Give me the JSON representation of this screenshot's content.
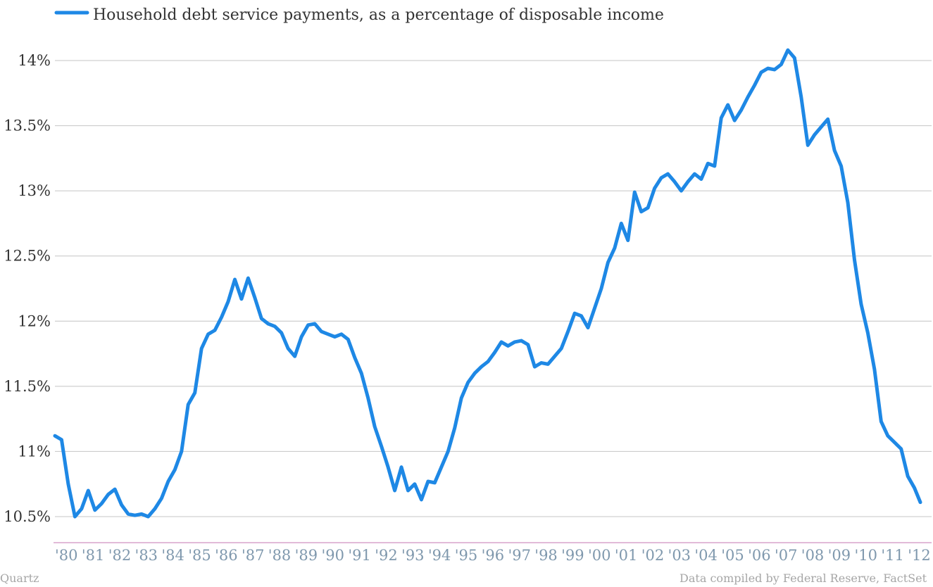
{
  "chart_data": {
    "type": "line",
    "title": "",
    "xlabel": "",
    "ylabel": "",
    "legend_position": "top-left",
    "grid": true,
    "ylim": [
      10.5,
      14.0
    ],
    "y_ticks": [
      {
        "value": 14.0,
        "label": "14%"
      },
      {
        "value": 13.5,
        "label": "13.5%"
      },
      {
        "value": 13.0,
        "label": "13%"
      },
      {
        "value": 12.5,
        "label": "12.5%"
      },
      {
        "value": 12.0,
        "label": "12%"
      },
      {
        "value": 11.5,
        "label": "11.5%"
      },
      {
        "value": 11.0,
        "label": "11%"
      },
      {
        "value": 10.5,
        "label": "10.5%"
      }
    ],
    "x_tick_labels": [
      "'80",
      "'81",
      "'82",
      "'83",
      "'84",
      "'85",
      "'86",
      "'87",
      "'88",
      "'89",
      "'90",
      "'91",
      "'92",
      "'93",
      "'94",
      "'95",
      "'96",
      "'97",
      "'98",
      "'99",
      "'00",
      "'01",
      "'02",
      "'03",
      "'04",
      "'05",
      "'06",
      "'07",
      "'08",
      "'09",
      "'10",
      "'11",
      "'12"
    ],
    "x_start_label": "1980 Q1",
    "series": [
      {
        "name": "Household debt service payments, as a percentage of disposable income",
        "color": "#1e88e5",
        "frequency": "quarterly",
        "values": [
          11.12,
          11.09,
          10.75,
          10.5,
          10.56,
          10.7,
          10.55,
          10.6,
          10.67,
          10.71,
          10.59,
          10.52,
          10.51,
          10.52,
          10.5,
          10.56,
          10.64,
          10.77,
          10.86,
          11.0,
          11.36,
          11.45,
          11.79,
          11.9,
          11.93,
          12.03,
          12.15,
          12.32,
          12.17,
          12.33,
          12.18,
          12.02,
          11.98,
          11.96,
          11.91,
          11.79,
          11.73,
          11.88,
          11.97,
          11.98,
          11.92,
          11.9,
          11.88,
          11.9,
          11.86,
          11.72,
          11.6,
          11.41,
          11.19,
          11.04,
          10.88,
          10.7,
          10.88,
          10.7,
          10.75,
          10.63,
          10.77,
          10.76,
          10.88,
          11.0,
          11.18,
          11.41,
          11.53,
          11.6,
          11.65,
          11.69,
          11.76,
          11.84,
          11.81,
          11.84,
          11.85,
          11.82,
          11.65,
          11.68,
          11.67,
          11.73,
          11.79,
          11.92,
          12.06,
          12.04,
          11.95,
          12.1,
          12.25,
          12.45,
          12.56,
          12.75,
          12.62,
          12.99,
          12.84,
          12.87,
          13.02,
          13.1,
          13.13,
          13.07,
          13.0,
          13.07,
          13.13,
          13.09,
          13.21,
          13.19,
          13.56,
          13.66,
          13.54,
          13.62,
          13.72,
          13.81,
          13.91,
          13.94,
          13.93,
          13.97,
          14.08,
          14.02,
          13.72,
          13.35,
          13.43,
          13.49,
          13.55,
          13.31,
          13.19,
          12.91,
          12.47,
          12.13,
          11.91,
          11.63,
          11.23,
          11.12,
          11.07,
          11.02,
          10.81,
          10.72,
          10.61
        ]
      }
    ]
  },
  "footer": {
    "left": "Quartz",
    "right": "Data compiled by Federal Reserve, FactSet"
  }
}
